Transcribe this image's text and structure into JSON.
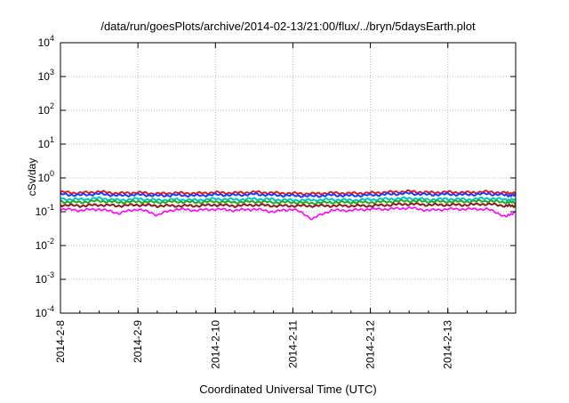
{
  "chart_data": {
    "type": "line",
    "title": "/data/run/goesPlots/archive/2014-02-13/21:00/flux/../bryn/5daysEarth.plot",
    "xlabel": "Coordinated Universal Time (UTC)",
    "ylabel": "cSv/day",
    "yscale": "log",
    "ylim": [
      0.0001,
      10000
    ],
    "xlim": [
      "2014-02-08",
      "2014-02-13 21:00"
    ],
    "grid": true,
    "y_ticks": [
      {
        "base": "10",
        "exp": "4",
        "value": 10000
      },
      {
        "base": "10",
        "exp": "3",
        "value": 1000
      },
      {
        "base": "10",
        "exp": "2",
        "value": 100
      },
      {
        "base": "10",
        "exp": "1",
        "value": 10
      },
      {
        "base": "10",
        "exp": "0",
        "value": 1
      },
      {
        "base": "10",
        "exp": "-1",
        "value": 0.1
      },
      {
        "base": "10",
        "exp": "-2",
        "value": 0.01
      },
      {
        "base": "10",
        "exp": "-3",
        "value": 0.001
      },
      {
        "base": "10",
        "exp": "-4",
        "value": 0.0001
      }
    ],
    "x_ticks": [
      "2014-2-8",
      "2014-2-9",
      "2014-2-10",
      "2014-2-11",
      "2014-2-12",
      "2014-2-13"
    ],
    "x": [
      "2014-02-08 00:00",
      "2014-02-08 06:00",
      "2014-02-08 12:00",
      "2014-02-08 18:00",
      "2014-02-09 00:00",
      "2014-02-09 06:00",
      "2014-02-09 12:00",
      "2014-02-09 18:00",
      "2014-02-10 00:00",
      "2014-02-10 06:00",
      "2014-02-10 12:00",
      "2014-02-10 18:00",
      "2014-02-11 00:00",
      "2014-02-11 06:00",
      "2014-02-11 12:00",
      "2014-02-11 18:00",
      "2014-02-12 00:00",
      "2014-02-12 06:00",
      "2014-02-12 12:00",
      "2014-02-12 18:00",
      "2014-02-13 00:00",
      "2014-02-13 06:00",
      "2014-02-13 12:00",
      "2014-02-13 18:00",
      "2014-02-13 21:00"
    ],
    "series": [
      {
        "color": "#e41a1c",
        "values": [
          0.38,
          0.36,
          0.39,
          0.35,
          0.37,
          0.34,
          0.36,
          0.35,
          0.37,
          0.36,
          0.38,
          0.36,
          0.35,
          0.34,
          0.36,
          0.35,
          0.36,
          0.38,
          0.4,
          0.37,
          0.38,
          0.37,
          0.39,
          0.36,
          0.35
        ]
      },
      {
        "color": "#1a3cff",
        "values": [
          0.33,
          0.31,
          0.34,
          0.3,
          0.32,
          0.3,
          0.31,
          0.3,
          0.32,
          0.31,
          0.33,
          0.31,
          0.3,
          0.29,
          0.31,
          0.3,
          0.31,
          0.33,
          0.35,
          0.32,
          0.33,
          0.32,
          0.34,
          0.31,
          0.3
        ]
      },
      {
        "color": "#00c8c8",
        "values": [
          0.24,
          0.23,
          0.25,
          0.22,
          0.24,
          0.22,
          0.23,
          0.22,
          0.24,
          0.23,
          0.24,
          0.23,
          0.22,
          0.22,
          0.23,
          0.22,
          0.23,
          0.24,
          0.25,
          0.23,
          0.24,
          0.23,
          0.25,
          0.23,
          0.22
        ]
      },
      {
        "color": "#22aa22",
        "values": [
          0.2,
          0.19,
          0.21,
          0.19,
          0.2,
          0.19,
          0.2,
          0.19,
          0.2,
          0.19,
          0.2,
          0.19,
          0.19,
          0.18,
          0.19,
          0.19,
          0.19,
          0.2,
          0.21,
          0.2,
          0.2,
          0.2,
          0.21,
          0.19,
          0.19
        ]
      },
      {
        "color": "#8b1a1a",
        "values": [
          0.16,
          0.15,
          0.16,
          0.15,
          0.16,
          0.15,
          0.15,
          0.15,
          0.16,
          0.15,
          0.16,
          0.15,
          0.15,
          0.15,
          0.15,
          0.15,
          0.15,
          0.16,
          0.17,
          0.16,
          0.16,
          0.16,
          0.17,
          0.15,
          0.15
        ]
      },
      {
        "color": "#ff00ff",
        "values": [
          0.12,
          0.11,
          0.12,
          0.09,
          0.12,
          0.08,
          0.12,
          0.11,
          0.12,
          0.11,
          0.12,
          0.1,
          0.12,
          0.06,
          0.11,
          0.11,
          0.12,
          0.12,
          0.13,
          0.11,
          0.12,
          0.12,
          0.12,
          0.07,
          0.1
        ]
      }
    ]
  }
}
